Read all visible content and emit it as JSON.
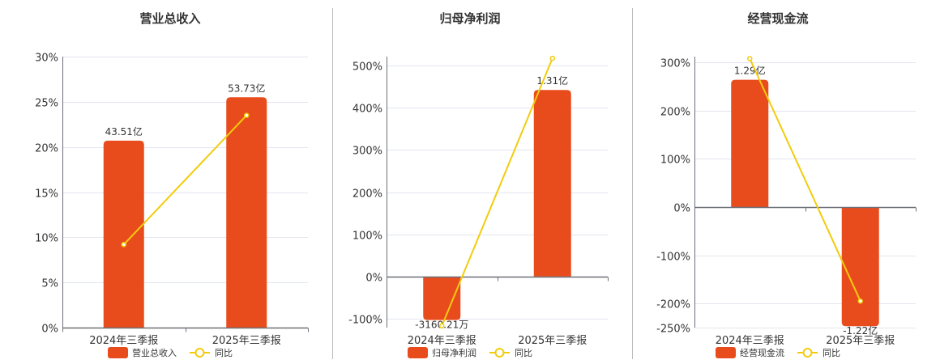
{
  "colors": {
    "bar": "#e84c1d",
    "line": "#f2cc0c",
    "grid": "#e3e6f0",
    "axis": "#6e7079",
    "divider": "#bbbbbb"
  },
  "chart_data": [
    {
      "type": "bar+line",
      "title": "营业总收入",
      "categories": [
        "2024年三季报",
        "2025年三季报"
      ],
      "y_ticks": [
        "30%",
        "25%",
        "20%",
        "15%",
        "10%",
        "5%",
        "0%"
      ],
      "ylim": [
        0,
        30
      ],
      "grid": true,
      "legend": "bottom",
      "series": [
        {
          "name": "营业总收入",
          "kind": "bar",
          "labels": [
            "43.51亿",
            "53.73亿"
          ],
          "level_percent": [
            20.7,
            25.5
          ]
        },
        {
          "name": "同比",
          "kind": "line",
          "values": [
            9.2,
            23.5
          ]
        }
      ]
    },
    {
      "type": "bar+line",
      "title": "归母净利润",
      "categories": [
        "2024年三季报",
        "2025年三季报"
      ],
      "y_ticks": [
        "500%",
        "400%",
        "300%",
        "200%",
        "100%",
        "0%",
        "-100%"
      ],
      "ylim": [
        -121,
        521
      ],
      "grid": true,
      "legend": "bottom",
      "series": [
        {
          "name": "归母净利润",
          "kind": "bar",
          "labels": [
            "-3160.21万",
            "1.31亿"
          ],
          "level_percent": [
            -103,
            442
          ]
        },
        {
          "name": "同比",
          "kind": "line",
          "values": [
            -117,
            517
          ]
        }
      ]
    },
    {
      "type": "bar+line",
      "title": "经营现金流",
      "categories": [
        "2024年三季报",
        "2025年三季报"
      ],
      "y_ticks": [
        "300%",
        "200%",
        "100%",
        "0%",
        "-100%",
        "-200%",
        "-250%"
      ],
      "ylim": [
        -250,
        312
      ],
      "grid": true,
      "legend": "bottom",
      "series": [
        {
          "name": "经营现金流",
          "kind": "bar",
          "labels": [
            "1.29亿",
            "-1.22亿"
          ],
          "level_percent": [
            264,
            -247
          ]
        },
        {
          "name": "同比",
          "kind": "line",
          "values": [
            308,
            -195
          ]
        }
      ]
    }
  ]
}
